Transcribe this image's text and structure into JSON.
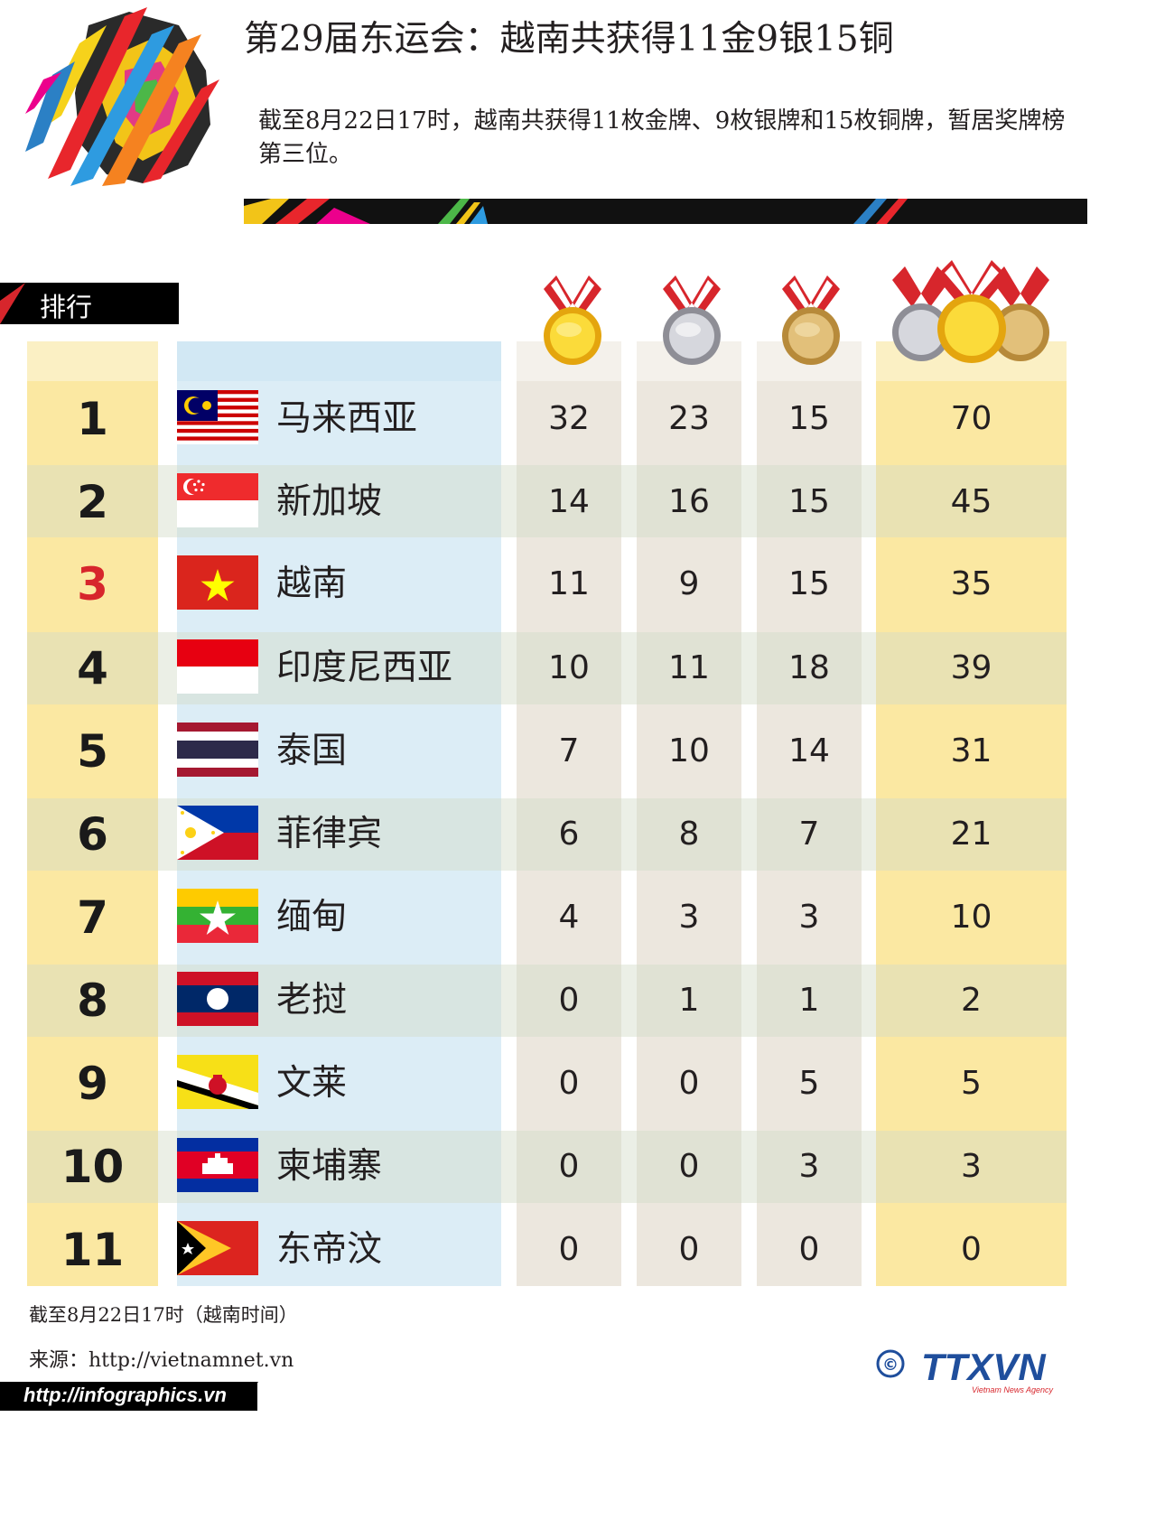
{
  "header": {
    "title": "第29届东运会：越南共获得11金9银15铜",
    "subtitle": "截至8月22日17时，越南共获得11枚金牌、9枚银牌和15枚铜牌，暂居奖牌榜第三位。"
  },
  "table": {
    "rank_header": "排行",
    "columns": [
      "gold-medal-icon",
      "silver-medal-icon",
      "bronze-medal-icon",
      "total-medals-icon"
    ],
    "highlight_rank": "3",
    "rows": [
      {
        "rank": "1",
        "country": "马来西亚",
        "flag": "malaysia-flag",
        "gold": "32",
        "silver": "23",
        "bronze": "15",
        "total": "70"
      },
      {
        "rank": "2",
        "country": "新加坡",
        "flag": "singapore-flag",
        "gold": "14",
        "silver": "16",
        "bronze": "15",
        "total": "45"
      },
      {
        "rank": "3",
        "country": "越南",
        "flag": "vietnam-flag",
        "gold": "11",
        "silver": "9",
        "bronze": "15",
        "total": "35"
      },
      {
        "rank": "4",
        "country": "印度尼西亚",
        "flag": "indonesia-flag",
        "gold": "10",
        "silver": "11",
        "bronze": "18",
        "total": "39"
      },
      {
        "rank": "5",
        "country": "泰国",
        "flag": "thailand-flag",
        "gold": "7",
        "silver": "10",
        "bronze": "14",
        "total": "31"
      },
      {
        "rank": "6",
        "country": "菲律宾",
        "flag": "philippines-flag",
        "gold": "6",
        "silver": "8",
        "bronze": "7",
        "total": "21"
      },
      {
        "rank": "7",
        "country": "缅甸",
        "flag": "myanmar-flag",
        "gold": "4",
        "silver": "3",
        "bronze": "3",
        "total": "10"
      },
      {
        "rank": "8",
        "country": "老挝",
        "flag": "laos-flag",
        "gold": "0",
        "silver": "1",
        "bronze": "1",
        "total": "2"
      },
      {
        "rank": "9",
        "country": "文莱",
        "flag": "brunei-flag",
        "gold": "0",
        "silver": "0",
        "bronze": "5",
        "total": "5"
      },
      {
        "rank": "10",
        "country": "柬埔寨",
        "flag": "cambodia-flag",
        "gold": "0",
        "silver": "0",
        "bronze": "3",
        "total": "3"
      },
      {
        "rank": "11",
        "country": "东帝汶",
        "flag": "timor-leste-flag",
        "gold": "0",
        "silver": "0",
        "bronze": "0",
        "total": "0"
      }
    ]
  },
  "footer": {
    "note": "截至8月22日17时（越南时间）",
    "source": "来源：http://vietnamnet.vn",
    "url": "http://infographics.vn",
    "agency_logo": "TTXVN",
    "agency_sub": "Vietnam News Agency",
    "copyright_symbol": "©"
  },
  "colors": {
    "highlight": "#d7262c",
    "gold_col": "#fbe8a2",
    "country_col": "#dcedf6",
    "medal_col": "#ece7de",
    "agency_blue": "#1f4e9c"
  }
}
